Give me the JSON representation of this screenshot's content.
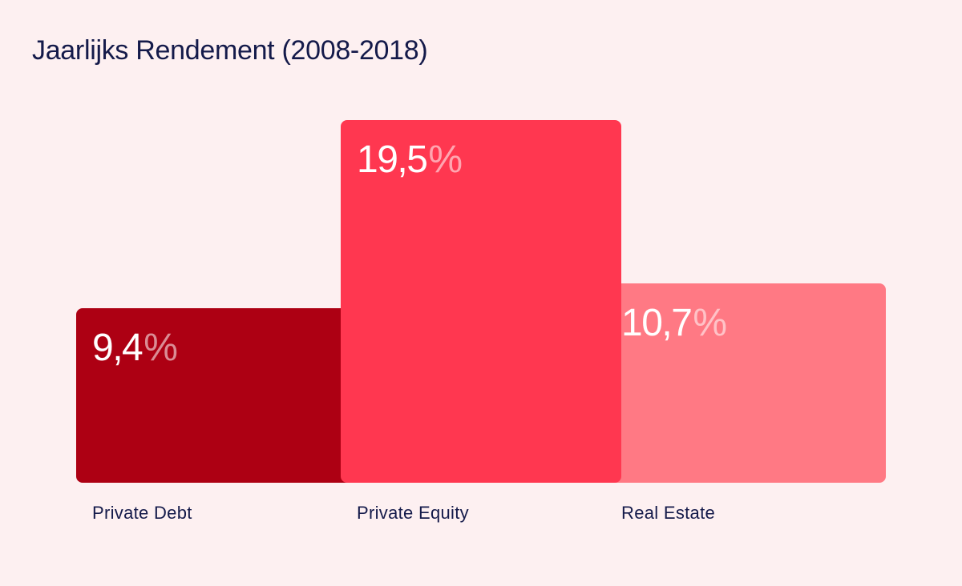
{
  "chart_data": {
    "type": "bar",
    "title": "Jaarlijks Rendement (2008-2018)",
    "xlabel": "",
    "ylabel": "",
    "ylim": [
      0,
      19.5
    ],
    "grid": false,
    "legend": "none",
    "unit": "%",
    "categories": [
      "Private Debt",
      "Private Equity",
      "Real Estate"
    ],
    "values": [
      9.4,
      19.5,
      10.7
    ],
    "value_labels": [
      "9,4",
      "19,5",
      "10,7"
    ],
    "colors": [
      "#ad0013",
      "#ff3750",
      "#ff7984"
    ]
  }
}
